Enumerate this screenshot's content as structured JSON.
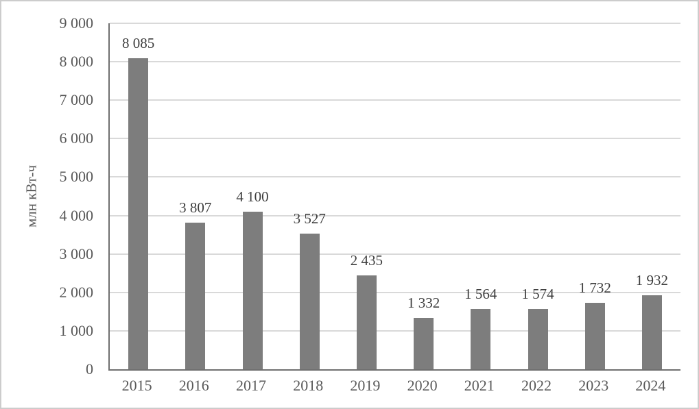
{
  "chart_data": {
    "type": "bar",
    "title": "",
    "xlabel": "",
    "ylabel": "млн кВт-ч",
    "categories": [
      "2015",
      "2016",
      "2017",
      "2018",
      "2019",
      "2020",
      "2021",
      "2022",
      "2023",
      "2024"
    ],
    "values": [
      8085,
      3807,
      4100,
      3527,
      2435,
      1332,
      1564,
      1574,
      1732,
      1932
    ],
    "value_labels": [
      "8 085",
      "3 807",
      "4 100",
      "3 527",
      "2 435",
      "1 332",
      "1 564",
      "1 574",
      "1 732",
      "1 932"
    ],
    "y_tick_values": [
      0,
      1000,
      2000,
      3000,
      4000,
      5000,
      6000,
      7000,
      8000,
      9000
    ],
    "y_tick_labels": [
      "0",
      "1 000",
      "2 000",
      "3 000",
      "4 000",
      "5 000",
      "6 000",
      "7 000",
      "8 000",
      "9 000"
    ],
    "ylim": [
      0,
      9000
    ],
    "grid": "horizontal",
    "legend": "none",
    "bar_color": "#7d7d7d",
    "gridline_color": "#d9d9d9",
    "axis_line_color": "#6f6f6f",
    "tick_text_color": "#595959",
    "label_text_color": "#3d3d3d"
  }
}
